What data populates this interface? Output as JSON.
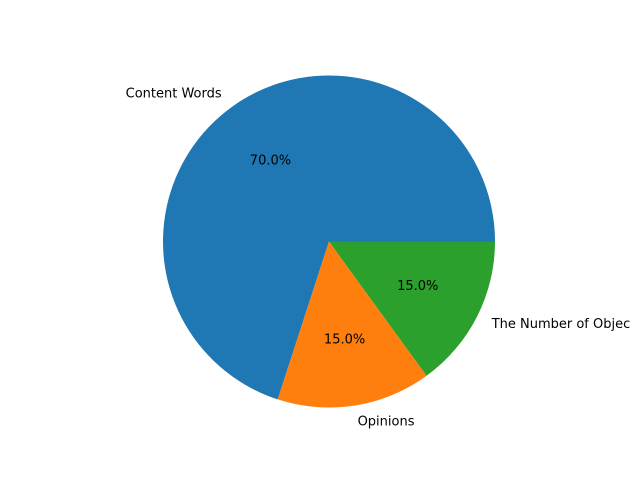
{
  "chart_data": {
    "type": "pie",
    "slices": [
      {
        "label": "Content Words",
        "value": 70.0,
        "pct_text": "70.0%",
        "color": "#1f77b4"
      },
      {
        "label": "Opinions",
        "value": 15.0,
        "pct_text": "15.0%",
        "color": "#ff7f0e"
      },
      {
        "label": "The Number of Objec",
        "value": 15.0,
        "pct_text": "15.0%",
        "color": "#2ca02c"
      }
    ],
    "start_angle": 0,
    "direction": "counterclockwise",
    "legend": "none"
  }
}
